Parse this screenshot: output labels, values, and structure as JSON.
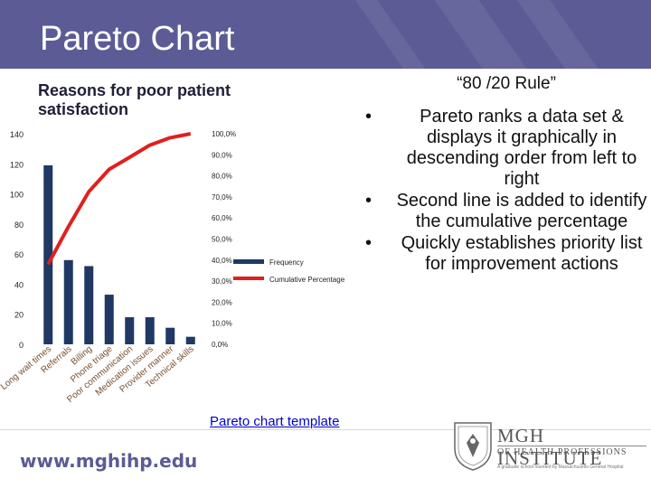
{
  "slide": {
    "title": "Pareto Chart",
    "rule_title": "“80 /20 Rule”",
    "bullets": [
      "Pareto ranks a data set & displays it graphically in descending order from left to right",
      "Second line is added to identify the cumulative percentage",
      "Quickly establishes priority list for improvement actions"
    ],
    "bullet_symbol": "•",
    "template_link": "Pareto chart template",
    "website": "www.mghihp.edu",
    "logo": {
      "name": "MGH INSTITUTE",
      "sub": "OF HEALTH PROFESSIONS",
      "tagline": "A graduate school founded by Massachusetts General Hospital"
    }
  },
  "colors": {
    "header": "#5b5b96",
    "bar": "#1f3864",
    "line": "#e02020",
    "link": "#0000cc"
  },
  "chart_data": {
    "type": "bar",
    "title": "Reasons for poor patient satisfaction",
    "categories": [
      "Long wait times",
      "Referrals",
      "Billing",
      "Phone triage",
      "Poor communication",
      "Medication issues",
      "Provider manner",
      "Technical skills"
    ],
    "series": [
      {
        "name": "Frequency",
        "type": "bar",
        "axis": "left",
        "values": [
          119,
          56,
          52,
          33,
          18,
          18,
          11,
          5
        ]
      },
      {
        "name": "Cumulative Percentage",
        "type": "line",
        "axis": "right",
        "values": [
          38.0,
          55.9,
          72.5,
          83.1,
          88.8,
          94.6,
          98.1,
          100.0
        ]
      }
    ],
    "y_left": {
      "ylim": [
        0,
        140
      ],
      "ticks": [
        "0",
        "20",
        "40",
        "60",
        "80",
        "100",
        "120",
        "140"
      ]
    },
    "y_right": {
      "ylim": [
        0,
        100
      ],
      "ticks": [
        "0,0%",
        "10,0%",
        "20,0%",
        "30,0%",
        "40,0%",
        "50,0%",
        "60,0%",
        "70,0%",
        "80,0%",
        "90,0%",
        "100,0%"
      ]
    },
    "legend": {
      "placement": "right",
      "entries": [
        "Frequency",
        "Cumulative Percentage"
      ]
    },
    "grid": false
  }
}
